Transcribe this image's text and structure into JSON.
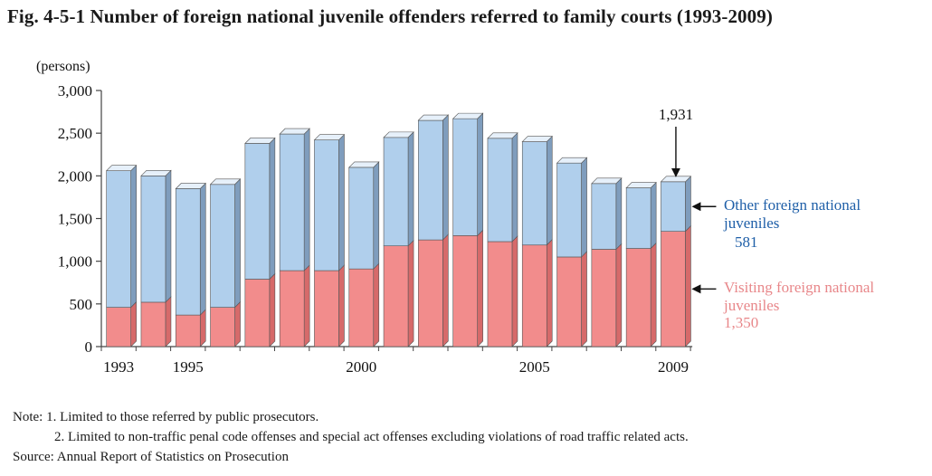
{
  "title": "Fig. 4-5-1  Number of foreign national juvenile offenders referred to family courts (1993-2009)",
  "notes": {
    "note1": "Note: 1. Limited to those referred by public prosecutors.",
    "note2": "2. Limited to non-traffic penal code offenses and special act offenses excluding violations of road traffic related acts.",
    "source": "Source:  Annual Report of Statistics on Prosecution"
  },
  "chart_data": {
    "type": "bar",
    "stacked": true,
    "y_unit_label": "(persons)",
    "ylim": [
      0,
      3000
    ],
    "y_ticks": [
      0,
      500,
      1000,
      1500,
      2000,
      2500,
      3000
    ],
    "y_tick_labels": [
      "0",
      "500",
      "1,000",
      "1,500",
      "2,000",
      "2,500",
      "3,000"
    ],
    "categories": [
      "1993",
      "1994",
      "1995",
      "1996",
      "1997",
      "1998",
      "1999",
      "2000",
      "2001",
      "2002",
      "2003",
      "2004",
      "2005",
      "2006",
      "2007",
      "2008",
      "2009"
    ],
    "x_tick_labels": [
      "1993",
      "",
      "1995",
      "",
      "",
      "",
      "",
      "2000",
      "",
      "",
      "",
      "",
      "2005",
      "",
      "",
      "",
      "2009"
    ],
    "series": [
      {
        "name": "Visiting foreign national juveniles",
        "color": "#f28c8c",
        "side_color": "#d66a6a",
        "values": [
          460,
          520,
          370,
          460,
          790,
          890,
          890,
          910,
          1180,
          1250,
          1300,
          1230,
          1190,
          1050,
          1140,
          1150,
          1350
        ]
      },
      {
        "name": "Other foreign national juveniles",
        "color": "#b0cfec",
        "side_color": "#7f9dbd",
        "values": [
          1600,
          1480,
          1480,
          1440,
          1590,
          1600,
          1530,
          1190,
          1270,
          1400,
          1370,
          1210,
          1210,
          1100,
          770,
          710,
          581
        ]
      }
    ],
    "legend_labels": {
      "other": {
        "line1": "Other foreign national",
        "line2": "juveniles",
        "value": "581",
        "color": "#1f5fa8"
      },
      "visiting": {
        "line1": "Visiting foreign national",
        "line2": "juveniles",
        "value": "1,350",
        "color": "#e8878a"
      }
    },
    "total_annotation": "1,931",
    "grid": false
  }
}
